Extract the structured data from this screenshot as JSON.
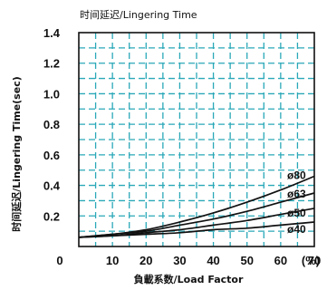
{
  "chart_data": {
    "type": "line",
    "title": "时间延迟/Lingering Time",
    "xlabel": "負載系数/Load Factor",
    "ylabel": "时间延迟/Lingering Time(sec)",
    "x_unit": "(%)",
    "xlim": [
      0,
      70
    ],
    "ylim": [
      0,
      1.4
    ],
    "x_ticks": [
      0,
      10,
      20,
      30,
      40,
      50,
      60,
      70
    ],
    "y_ticks": [
      0.2,
      0.4,
      0.6,
      0.8,
      1.0,
      1.2,
      1.4
    ],
    "x_tick_labels": [
      "0",
      "10",
      "20",
      "30",
      "40",
      "50",
      "60",
      "70"
    ],
    "y_tick_labels": [
      "0.2",
      "0.4",
      "0.6",
      "0.8",
      "1.0",
      "1.2",
      "1.4"
    ],
    "grid": true,
    "grid_style": "dashed",
    "grid_color": "#2aa8b8",
    "line_color": "#111111",
    "series": [
      {
        "name": "ø80",
        "x": [
          0,
          10,
          20,
          30,
          40,
          50,
          60,
          70
        ],
        "y": [
          0.06,
          0.08,
          0.11,
          0.16,
          0.22,
          0.29,
          0.37,
          0.46
        ]
      },
      {
        "name": "ø63",
        "x": [
          0,
          10,
          20,
          30,
          40,
          50,
          60,
          70
        ],
        "y": [
          0.06,
          0.08,
          0.1,
          0.14,
          0.18,
          0.23,
          0.29,
          0.35
        ]
      },
      {
        "name": "ø50",
        "x": [
          0,
          10,
          20,
          30,
          40,
          50,
          60,
          70
        ],
        "y": [
          0.06,
          0.07,
          0.09,
          0.11,
          0.14,
          0.17,
          0.21,
          0.25
        ]
      },
      {
        "name": "ø40",
        "x": [
          0,
          10,
          20,
          30,
          40,
          50,
          60,
          70
        ],
        "y": [
          0.06,
          0.07,
          0.08,
          0.09,
          0.11,
          0.12,
          0.14,
          0.16
        ]
      }
    ]
  }
}
